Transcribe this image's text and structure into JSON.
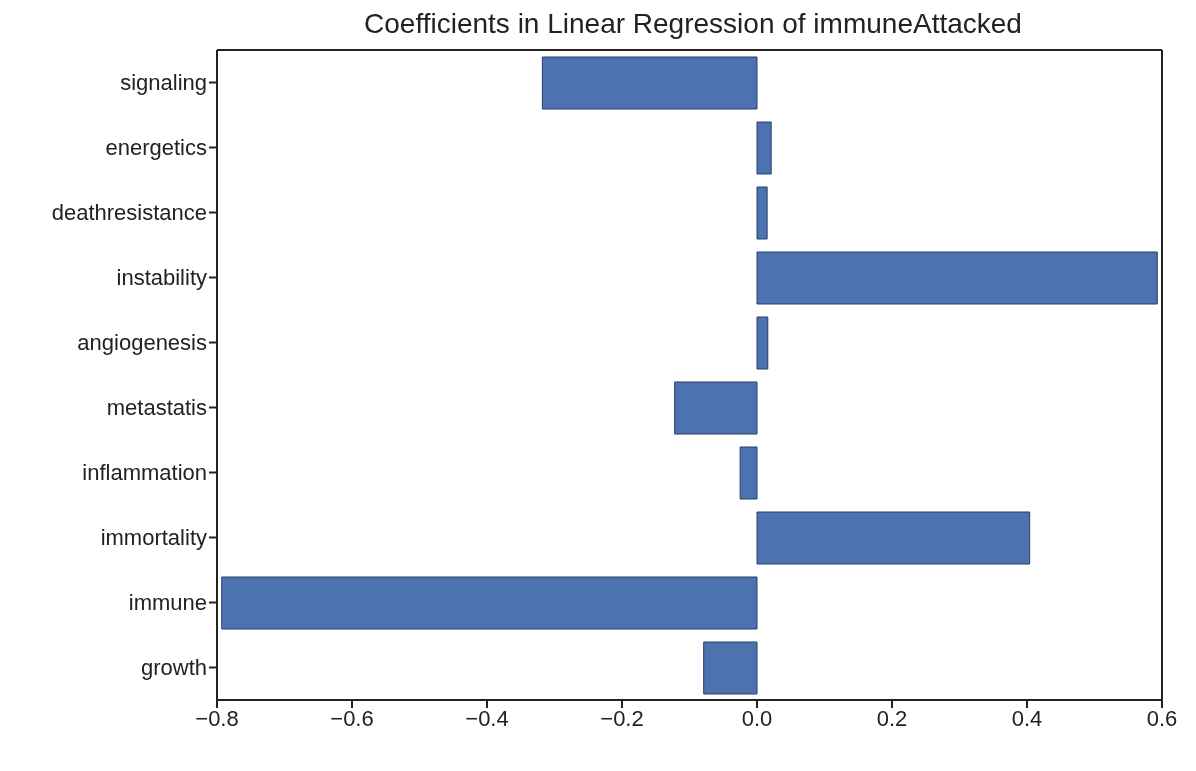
{
  "chart_data": {
    "type": "bar",
    "orientation": "horizontal",
    "title": "Coefficients in Linear Regression of immuneAttacked",
    "categories": [
      "signaling",
      "energetics",
      "deathresistance",
      "instability",
      "angiogenesis",
      "metastatis",
      "inflammation",
      "immortality",
      "immune",
      "growth"
    ],
    "values": [
      -0.318,
      0.021,
      0.015,
      0.593,
      0.016,
      -0.122,
      -0.025,
      0.404,
      -0.793,
      -0.079
    ],
    "color": "#4c72b0",
    "xlim": [
      -0.8,
      0.6
    ],
    "xticks": [
      {
        "value": -0.8,
        "label": "−0.8"
      },
      {
        "value": -0.6,
        "label": "−0.6"
      },
      {
        "value": -0.4,
        "label": "−0.4"
      },
      {
        "value": -0.2,
        "label": "−0.2"
      },
      {
        "value": 0,
        "label": "0.0"
      },
      {
        "value": 0.2,
        "label": "0.2"
      },
      {
        "value": 0.4,
        "label": "0.4"
      },
      {
        "value": 0.6,
        "label": "0.6"
      }
    ],
    "grid": false
  }
}
